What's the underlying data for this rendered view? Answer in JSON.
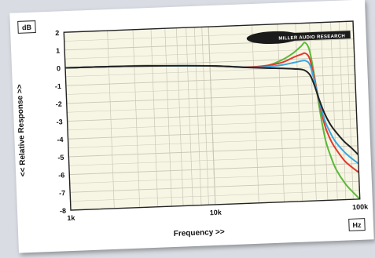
{
  "chart_data": {
    "type": "line",
    "title": "",
    "unit_badge_y": "dB",
    "unit_badge_x": "Hz",
    "logo_text": "MILLER AUDIO RESEARCH",
    "xlabel": "Frequency >>",
    "ylabel": "<< Relative Response >>",
    "x_scale": "log",
    "xlim": [
      1000,
      100000
    ],
    "ylim": [
      -8,
      2
    ],
    "grid": true,
    "xticks": [
      {
        "value": 1000,
        "label": "1k"
      },
      {
        "value": 10000,
        "label": "10k"
      },
      {
        "value": 100000,
        "label": "100k"
      }
    ],
    "yticks": [
      2,
      1,
      0,
      -1,
      -2,
      -3,
      -4,
      -5,
      -6,
      -7,
      -8
    ],
    "ytick_labels": [
      "2",
      "1",
      "0",
      "-1",
      "-2",
      "-3",
      "-4",
      "-5",
      "-6",
      "-7",
      "-8"
    ],
    "colors": {
      "plot_bg": "#f7f5e4",
      "grid": "#c9c7b7",
      "frame": "#222222"
    },
    "series": [
      {
        "color": "#5cb83a",
        "x": [
          1000,
          3000,
          10000,
          18000,
          25000,
          32000,
          38000,
          43000,
          46000,
          49000,
          52000,
          56000,
          60000,
          65000,
          70000,
          80000,
          90000,
          100000
        ],
        "y": [
          0,
          -0.05,
          -0.2,
          -0.35,
          -0.3,
          0,
          0.35,
          0.7,
          0.9,
          0.5,
          -0.8,
          -3.0,
          -4.6,
          -5.6,
          -6.3,
          -7.1,
          -7.6,
          -8.0
        ]
      },
      {
        "color": "#e23a2e",
        "x": [
          1000,
          3000,
          10000,
          18000,
          25000,
          32000,
          38000,
          43000,
          46000,
          49000,
          52000,
          56000,
          60000,
          65000,
          70000,
          80000,
          90000,
          100000
        ],
        "y": [
          0,
          -0.05,
          -0.2,
          -0.35,
          -0.3,
          -0.15,
          0.1,
          0.25,
          0.3,
          0.0,
          -1.0,
          -2.6,
          -3.8,
          -4.6,
          -5.1,
          -5.8,
          -6.2,
          -6.5
        ]
      },
      {
        "color": "#3aa7e0",
        "x": [
          1000,
          3000,
          10000,
          18000,
          25000,
          32000,
          38000,
          43000,
          46000,
          49000,
          52000,
          56000,
          60000,
          65000,
          70000,
          80000,
          90000,
          100000
        ],
        "y": [
          0,
          -0.05,
          -0.2,
          -0.36,
          -0.38,
          -0.3,
          -0.2,
          -0.12,
          -0.12,
          -0.35,
          -1.2,
          -2.5,
          -3.5,
          -4.2,
          -4.7,
          -5.3,
          -5.7,
          -6.0
        ]
      },
      {
        "color": "#222222",
        "x": [
          1000,
          3000,
          10000,
          18000,
          25000,
          32000,
          38000,
          43000,
          46000,
          49000,
          52000,
          56000,
          60000,
          65000,
          70000,
          80000,
          90000,
          100000
        ],
        "y": [
          0,
          -0.05,
          -0.2,
          -0.37,
          -0.45,
          -0.5,
          -0.55,
          -0.6,
          -0.7,
          -0.95,
          -1.5,
          -2.4,
          -3.1,
          -3.7,
          -4.1,
          -4.7,
          -5.1,
          -5.5
        ]
      }
    ]
  }
}
